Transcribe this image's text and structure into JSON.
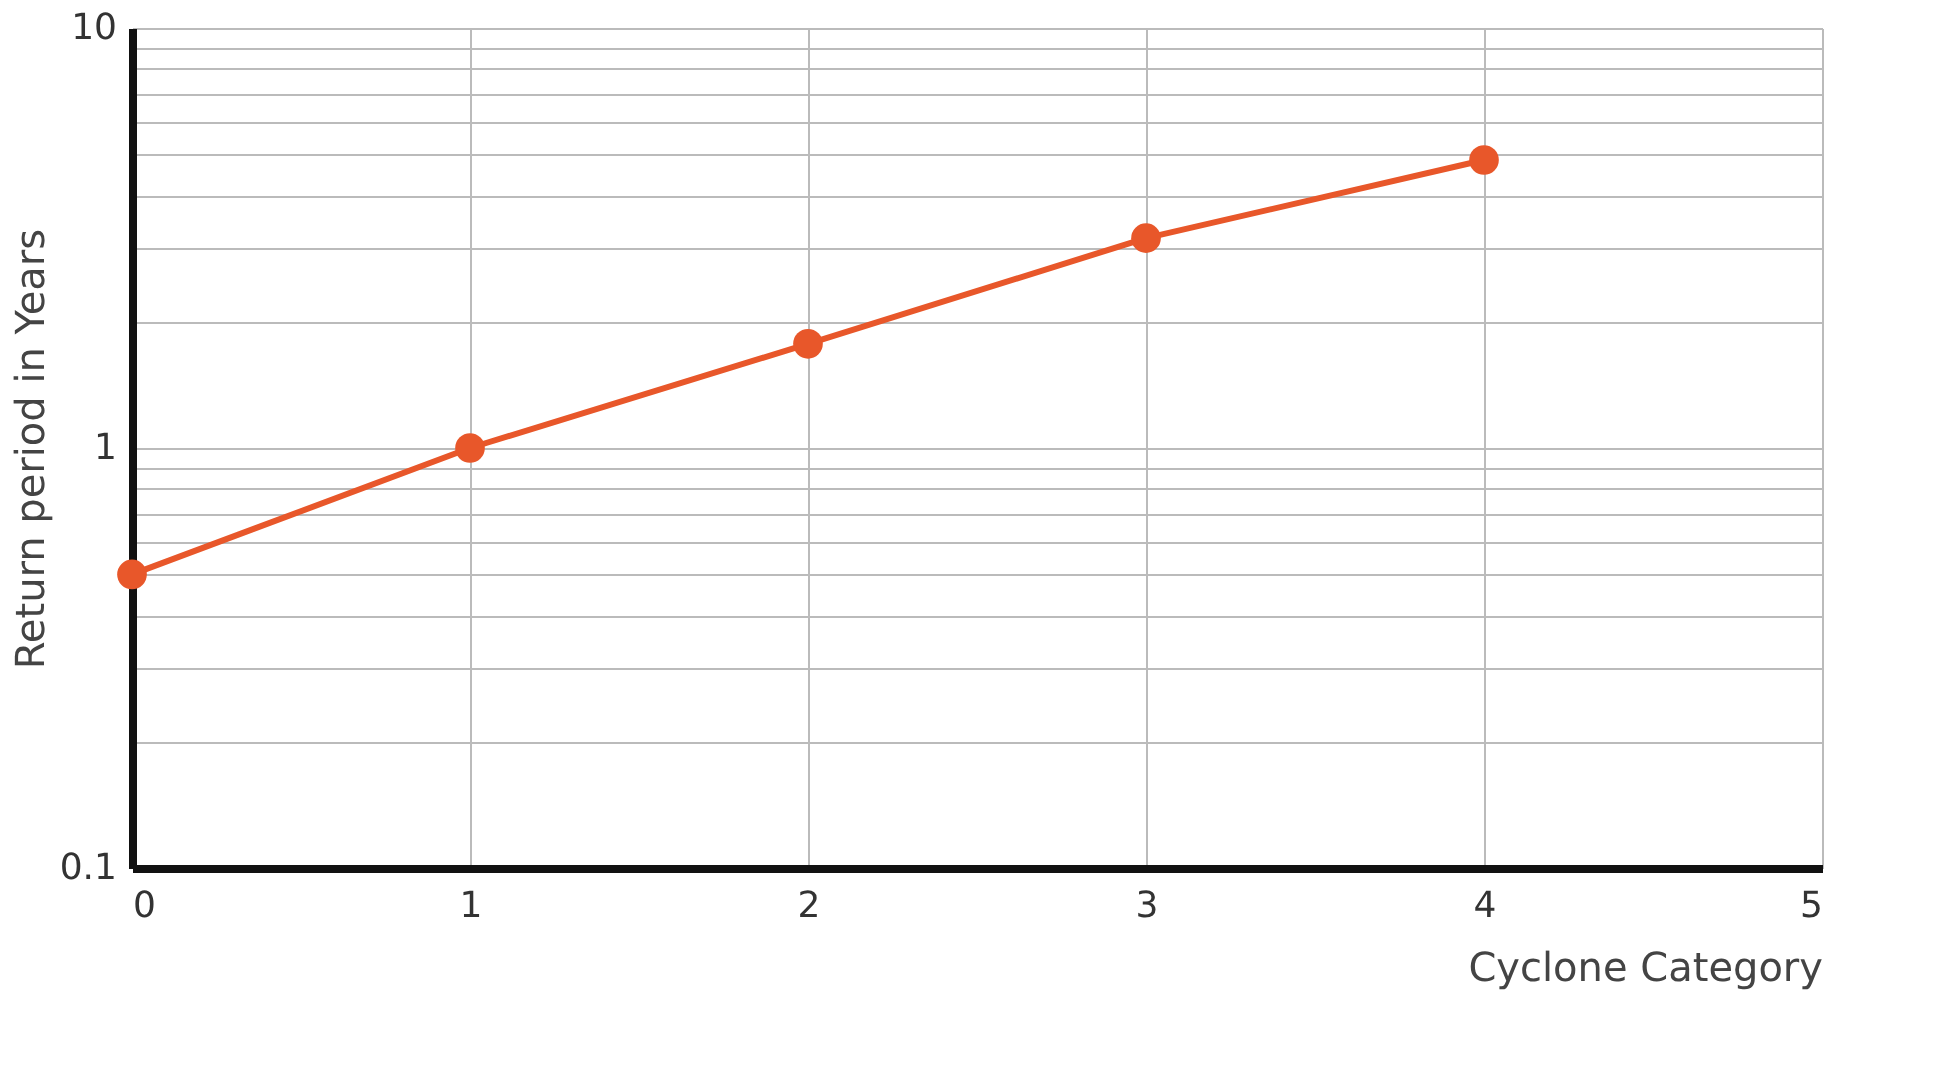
{
  "chart_data": {
    "type": "line",
    "xlabel": "Cyclone Category",
    "ylabel": "Return period in Years",
    "x": [
      0,
      1,
      2,
      3,
      4
    ],
    "series": [
      {
        "color": "#e8572a",
        "values": [
          0.5,
          1,
          1.77,
          3.16,
          4.85
        ]
      }
    ],
    "log": "y",
    "xlim": [
      0,
      5
    ],
    "xticks": [
      0,
      1,
      2,
      3,
      4,
      5
    ],
    "ylim": [
      0.1,
      10
    ],
    "yticks": [
      0.1,
      {
        "value": 0.2,
        "label": null
      },
      {
        "value": 0.3,
        "label": null
      },
      {
        "value": 0.4,
        "label": null
      },
      {
        "value": 0.5,
        "label": null
      },
      {
        "value": 0.6,
        "label": null
      },
      {
        "value": 0.7,
        "label": null
      },
      {
        "value": 0.8,
        "label": null
      },
      {
        "value": 0.9,
        "label": null
      },
      1,
      {
        "value": 2,
        "label": null
      },
      {
        "value": 3,
        "label": null
      },
      {
        "value": 4,
        "label": null
      },
      {
        "value": 5,
        "label": null
      },
      {
        "value": 6,
        "label": null
      },
      {
        "value": 7,
        "label": null
      },
      {
        "value": 8,
        "label": null
      },
      {
        "value": 9,
        "label": null
      },
      10
    ],
    "grid": true,
    "marker": "circle",
    "line_style": "solid"
  }
}
